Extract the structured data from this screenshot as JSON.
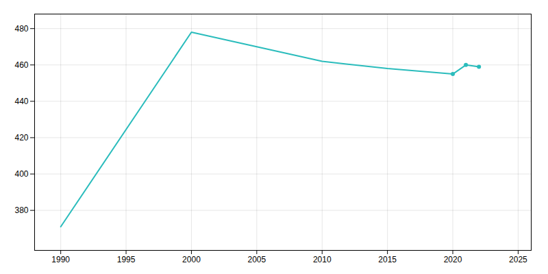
{
  "chart_data": {
    "type": "line",
    "x": [
      1990,
      2000,
      2010,
      2015,
      2020,
      2021,
      2022
    ],
    "series": [
      {
        "type": "line",
        "color": "#2abcbc",
        "values": [
          371,
          478,
          462,
          458,
          455,
          460,
          459
        ]
      },
      {
        "type": "scatter",
        "marker": "circle",
        "color": "#2abcbc",
        "values": [
          null,
          null,
          null,
          null,
          455,
          460,
          459
        ]
      }
    ],
    "xlim": [
      1988,
      2026
    ],
    "ylim": [
      358,
      488
    ],
    "xticks": [
      1990,
      1995,
      2000,
      2005,
      2010,
      2015,
      2020,
      2025
    ],
    "yticks": [
      380,
      400,
      420,
      440,
      460,
      480
    ],
    "grid": true
  }
}
